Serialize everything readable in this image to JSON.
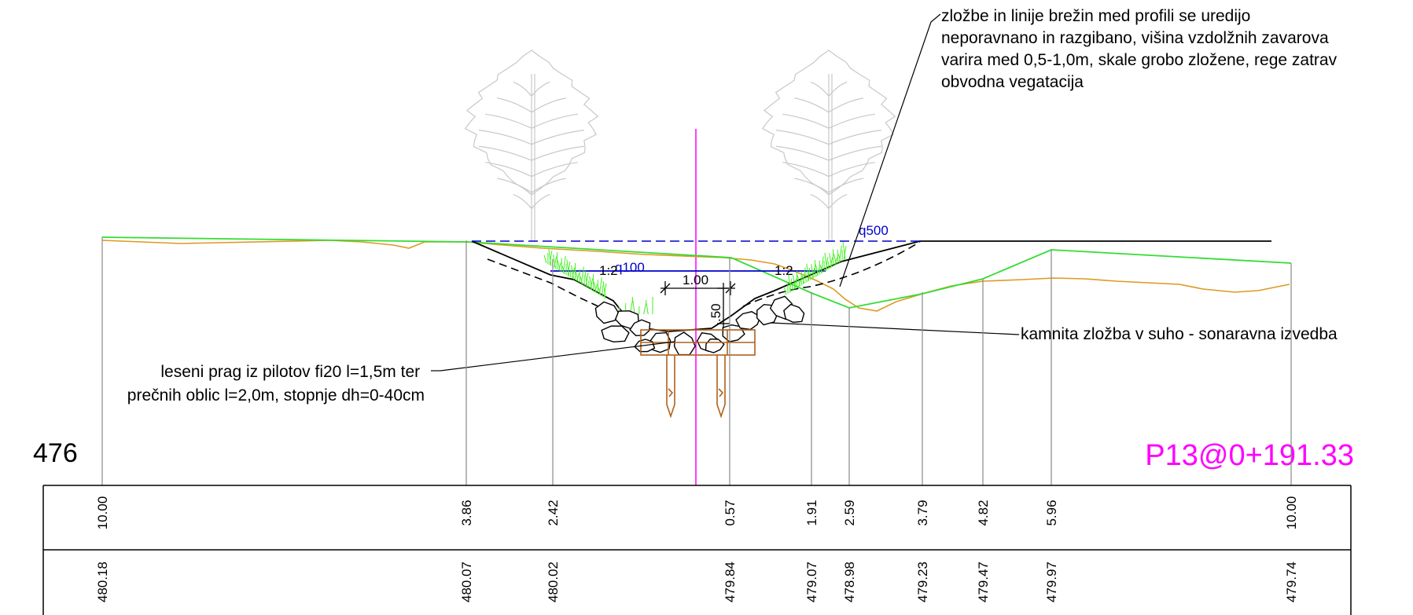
{
  "annotations": {
    "top_note_lines": [
      "zložbe in linije brežin med profili se uredijo",
      "neporavnano in razgibano, višina  vzdolžnih zavarova",
      "varira med 0,5-1,0m, skale grobo zložene, rege zatrav",
      "obvodna vegatacija"
    ],
    "right_note": "kamnita zložba v suho - sonaravna izvedba",
    "left_note_lines": [
      "leseni prag iz pilotov fi20 l=1,5m ter",
      "prečnih oblic l=2,0m, stopnje dh=0-40cm"
    ],
    "datum_label": "476",
    "profile_label": "P13@0+191.33",
    "q500_label": "q500",
    "q100_label": "q100",
    "dim_width": "1.00",
    "dim_depth": ".50",
    "slope_left": "1:2",
    "slope_right": "1:2"
  },
  "colors": {
    "terrain_green": "#33dd33",
    "terrain_orange": "#dd9922",
    "axis_magenta": "#ff00ff",
    "water_blue": "#0000cc",
    "timber_brown": "#b0601a",
    "tree_gray": "#c8c8c8",
    "grass_green": "#44ee22"
  },
  "chart_data": {
    "type": "table",
    "stations": [
      {
        "distance": "10.00",
        "elevation": "480.18"
      },
      {
        "distance": "3.86",
        "elevation": "480.07"
      },
      {
        "distance": "2.42",
        "elevation": "480.02"
      },
      {
        "distance": "0.57",
        "elevation": "479.84"
      },
      {
        "distance": "1.91",
        "elevation": "479.07"
      },
      {
        "distance": "2.59",
        "elevation": "478.98"
      },
      {
        "distance": "3.79",
        "elevation": "479.23"
      },
      {
        "distance": "4.82",
        "elevation": "479.47"
      },
      {
        "distance": "5.96",
        "elevation": "479.97"
      },
      {
        "distance": "10.00",
        "elevation": "479.74"
      }
    ]
  }
}
